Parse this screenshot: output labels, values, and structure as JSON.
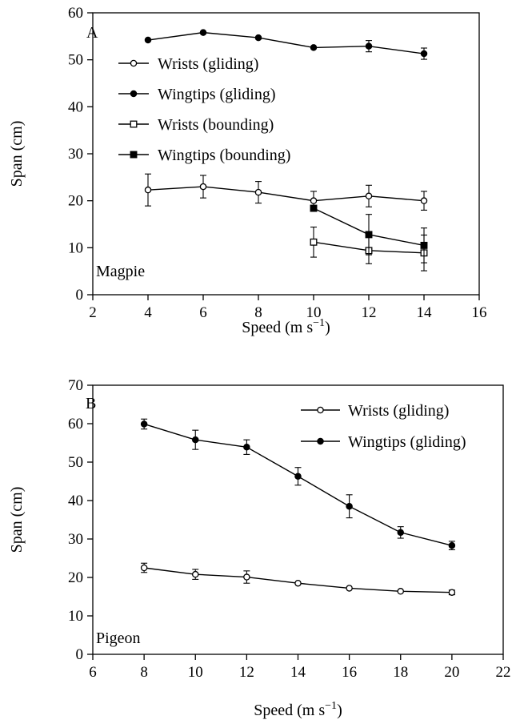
{
  "chart_data": [
    {
      "panel": "A",
      "type": "line",
      "annotation": "Magpie",
      "xlabel": "Speed (m s−1)",
      "ylabel": "Span (cm)",
      "xlim": [
        2,
        16
      ],
      "ylim": [
        0,
        60
      ],
      "xticks": [
        "2",
        "4",
        "6",
        "8",
        "10",
        "12",
        "14",
        "16"
      ],
      "yticks": [
        "0",
        "10",
        "20",
        "30",
        "40",
        "50",
        "60"
      ],
      "legend_position": "upper-left",
      "series": [
        {
          "name": "Wrists (gliding)",
          "marker": "open-circle",
          "x": [
            4,
            6,
            8,
            10,
            12,
            14
          ],
          "y": [
            22.3,
            23.0,
            21.8,
            20.0,
            21.0,
            20.0
          ],
          "err": [
            3.4,
            2.4,
            2.3,
            2.0,
            2.3,
            2.0
          ]
        },
        {
          "name": "Wingtips (gliding)",
          "marker": "filled-circle",
          "x": [
            4,
            6,
            8,
            10,
            12,
            14
          ],
          "y": [
            54.2,
            55.8,
            54.7,
            52.6,
            52.9,
            51.3
          ],
          "err": [
            0,
            0,
            0,
            0,
            1.2,
            1.2
          ]
        },
        {
          "name": "Wrists (bounding)",
          "marker": "open-square",
          "x": [
            10,
            12,
            14
          ],
          "y": [
            11.2,
            9.4,
            8.9
          ],
          "err": [
            3.2,
            2.8,
            3.8
          ]
        },
        {
          "name": "Wingtips (bounding)",
          "marker": "filled-square",
          "x": [
            10,
            12,
            14
          ],
          "y": [
            18.4,
            12.8,
            10.5
          ],
          "err": [
            0,
            4.3,
            3.7
          ]
        }
      ]
    },
    {
      "panel": "B",
      "type": "line",
      "annotation": "Pigeon",
      "xlabel": "Speed (m s−1)",
      "ylabel": "Span (cm)",
      "xlim": [
        6,
        22
      ],
      "ylim": [
        0,
        70
      ],
      "xticks": [
        "6",
        "8",
        "10",
        "12",
        "14",
        "16",
        "18",
        "20",
        "22"
      ],
      "yticks": [
        "0",
        "10",
        "20",
        "30",
        "40",
        "50",
        "60",
        "70"
      ],
      "legend_position": "upper-right",
      "series": [
        {
          "name": "Wrists (gliding)",
          "marker": "open-circle",
          "x": [
            8,
            10,
            12,
            14,
            16,
            18,
            20
          ],
          "y": [
            22.5,
            20.8,
            20.1,
            18.5,
            17.2,
            16.4,
            16.1
          ],
          "err": [
            1.2,
            1.3,
            1.6,
            0,
            0,
            0,
            0.6
          ]
        },
        {
          "name": "Wingtips (gliding)",
          "marker": "filled-circle",
          "x": [
            8,
            10,
            12,
            14,
            16,
            18,
            20
          ],
          "y": [
            59.9,
            55.8,
            53.9,
            46.3,
            38.5,
            31.7,
            28.3
          ],
          "err": [
            1.3,
            2.5,
            1.9,
            2.3,
            3.0,
            1.5,
            1.1
          ]
        }
      ]
    }
  ]
}
